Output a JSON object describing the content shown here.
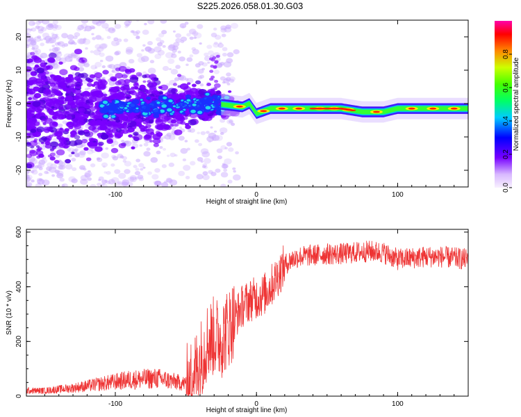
{
  "chart_data": [
    {
      "type": "heatmap",
      "title": "S225.2026.058.01.30.G03",
      "xlabel": "Height of straight line (km)",
      "ylabel": "Frequency (Hz)",
      "xlim": [
        -163,
        150
      ],
      "ylim": [
        -25,
        25
      ],
      "xticks": [
        -100,
        0,
        100
      ],
      "yticks": [
        -20,
        -10,
        0,
        10,
        20
      ],
      "colorbar": {
        "label": "Normalized spectral amplitude",
        "range": [
          0,
          1
        ],
        "ticks": [
          "0.0",
          "0.2",
          "0.4",
          "0.6",
          "0.8"
        ],
        "tick_values": [
          0.0,
          0.2,
          0.4,
          0.6,
          0.8
        ]
      },
      "ridge": {
        "description_points_km_hz": [
          [
            -100,
            -1.5
          ],
          [
            -60,
            -0.5
          ],
          [
            -30,
            0
          ],
          [
            -20,
            -0.5
          ],
          [
            -10,
            -1.0
          ],
          [
            -5,
            0
          ],
          [
            0,
            -3.0
          ],
          [
            10,
            -1.5
          ],
          [
            30,
            -1.5
          ],
          [
            60,
            -1.5
          ],
          [
            75,
            -2.5
          ],
          [
            90,
            -2.5
          ],
          [
            100,
            -1.5
          ],
          [
            150,
            -1.5
          ]
        ]
      }
    },
    {
      "type": "line",
      "xlabel": "Height of straight line (km)",
      "ylabel": "SNR (10 * v/v)",
      "xlim": [
        -163,
        150
      ],
      "ylim": [
        0,
        610
      ],
      "xticks": [
        -100,
        0,
        100
      ],
      "yticks": [
        0,
        200,
        400,
        600
      ],
      "series": [
        {
          "name": "SNR",
          "color": "#ee3333",
          "x": [
            -163,
            -150,
            -130,
            -110,
            -90,
            -70,
            -60,
            -50,
            -45,
            -40,
            -35,
            -30,
            -25,
            -20,
            -15,
            -10,
            -5,
            0,
            5,
            10,
            15,
            20,
            25,
            30,
            40,
            50,
            60,
            70,
            80,
            90,
            100,
            110,
            120,
            130,
            140,
            150
          ],
          "y": [
            20,
            20,
            30,
            45,
            60,
            65,
            55,
            45,
            70,
            130,
            200,
            220,
            210,
            250,
            290,
            330,
            350,
            360,
            370,
            400,
            440,
            480,
            500,
            510,
            515,
            520,
            520,
            525,
            530,
            525,
            500,
            505,
            510,
            510,
            505,
            500
          ]
        }
      ]
    }
  ],
  "theme": {
    "line_color": "#ee3333"
  }
}
